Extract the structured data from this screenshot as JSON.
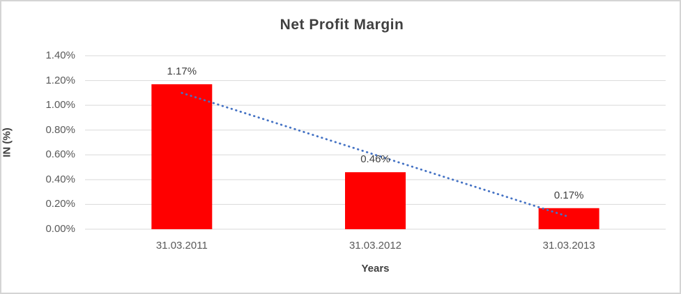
{
  "window": {
    "background_color": "#FFFFFF",
    "border_color": "#D4D4D4"
  },
  "chart_data": {
    "type": "bar",
    "title": "Net Profit Margin",
    "xlabel": "Years",
    "ylabel": "IN (%)",
    "categories": [
      "31.03.2011",
      "31.03.2012",
      "31.03.2013"
    ],
    "values": [
      1.17,
      0.46,
      0.17
    ],
    "data_labels": [
      "1.17%",
      "0.46%",
      "0.17%"
    ],
    "y_ticks": [
      "0.00%",
      "0.20%",
      "0.40%",
      "0.60%",
      "0.80%",
      "1.00%",
      "1.20%",
      "1.40%"
    ],
    "ylim": [
      0,
      1.4
    ],
    "grid": true,
    "legend_position": "none",
    "bar_color": "#FF0000",
    "gridline_color": "#D9D9D9",
    "axis_line_color": "#D9D9D9",
    "tick_text_color": "#595959",
    "label_text_color": "#404040",
    "trendline": {
      "type": "linear",
      "style": "dotted",
      "color": "#4472C4",
      "start_value": 1.1,
      "end_value": 0.1
    }
  }
}
